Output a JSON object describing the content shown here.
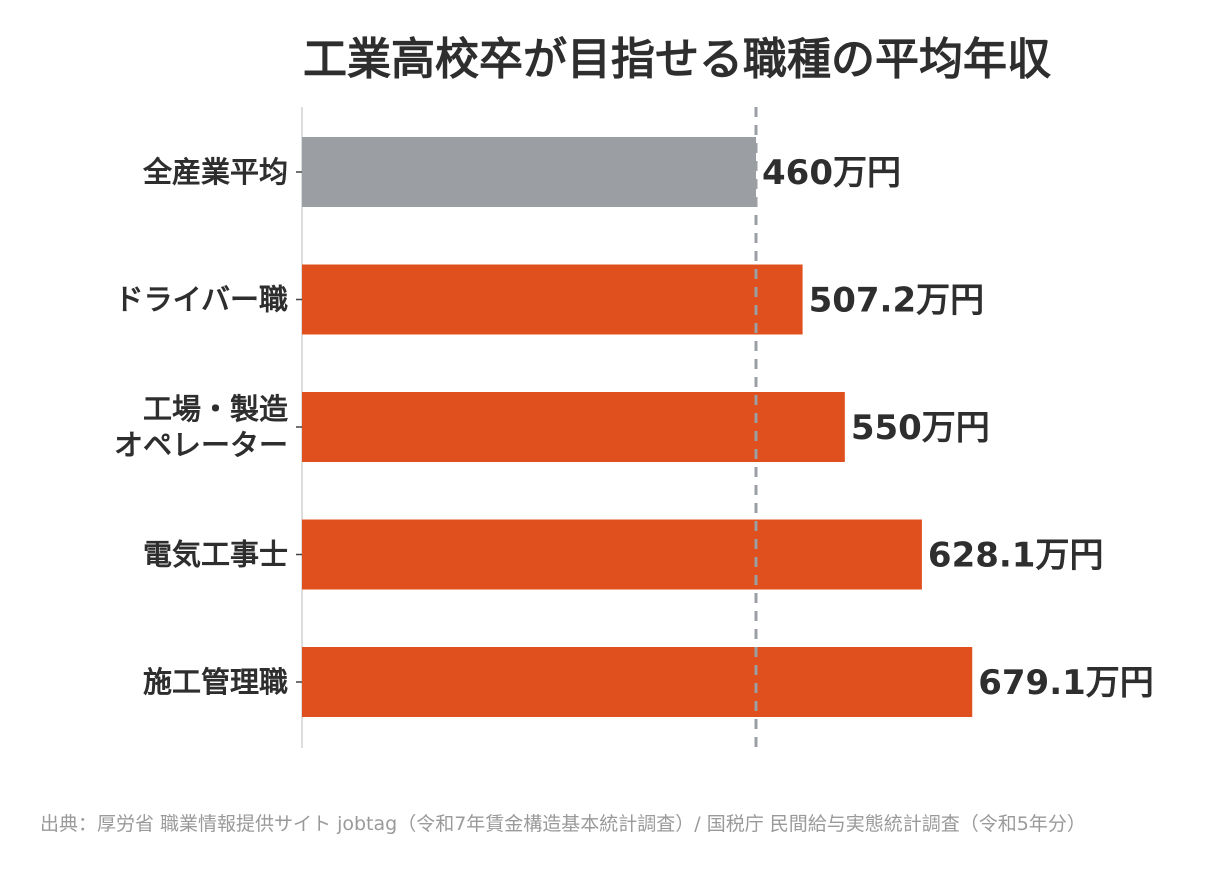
{
  "chart_data": {
    "type": "bar",
    "orientation": "horizontal",
    "title": "工業高校卒が目指せる職種の平均年収",
    "categories": [
      "全産業平均",
      "ドライバー職",
      "工場・製造\nオペレーター",
      "電気工事士",
      "施工管理職"
    ],
    "values": [
      460,
      507.2,
      550,
      628.1,
      679.1
    ],
    "value_labels": [
      "460万円",
      "507.2万円",
      "550万円",
      "628.1万円",
      "679.1万円"
    ],
    "unit": "万円",
    "xlim": [
      0,
      700
    ],
    "reference_line": {
      "value": 460,
      "style": "dashed"
    },
    "grid": false,
    "colors": {
      "highlight": "#e0501f",
      "baseline": "#9b9ea3",
      "reference_line": "#9b9ea3",
      "axis": "#dddddd"
    },
    "bar_colors": [
      "#9b9ea3",
      "#e0501f",
      "#e0501f",
      "#e0501f",
      "#e0501f"
    ]
  },
  "source": "出典：厚労省 職業情報提供サイト jobtag（令和7年賃金構造基本統計調査）/ 国税庁 民間給与実態統計調査（令和5年分）"
}
